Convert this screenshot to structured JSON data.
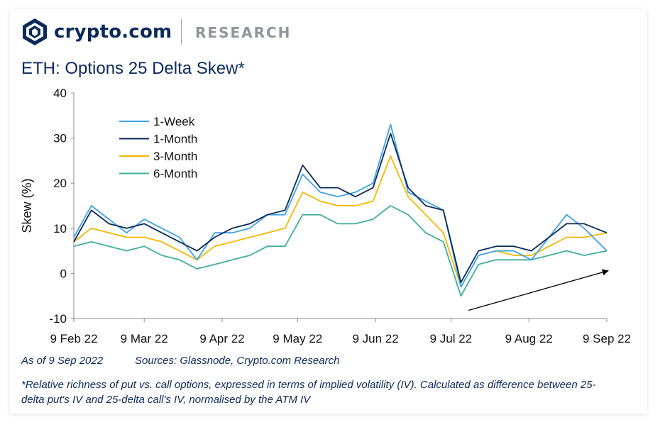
{
  "header": {
    "brand_name": "crypto.com",
    "brand_sub": "RESEARCH",
    "title": "ETH: Options 25 Delta Skew*"
  },
  "footer": {
    "as_of": "As of 9 Sep 2022",
    "sources": "Sources: Glassnode, Crypto.com Research",
    "footnote": "*Relative richness of put vs. call options, expressed in terms of implied volatility (IV). Calculated as difference between 25-delta put's IV and 25-delta call's IV, normalised by the ATM IV"
  },
  "colors": {
    "1-Week": "#3fa2e8",
    "1-Month": "#0b2a5b",
    "3-Month": "#f5b800",
    "6-Month": "#3fae9b",
    "brand": "#0b2a5b"
  },
  "chart_data": {
    "type": "line",
    "title": "ETH: Options 25 Delta Skew*",
    "ylabel": "Skew (%)",
    "xlabel": "",
    "ylim": [
      -10,
      40
    ],
    "yticks": [
      "-10",
      "0",
      "10",
      "20",
      "30",
      "40"
    ],
    "xticks": [
      "9 Feb 22",
      "9 Mar 22",
      "9 Apr 22",
      "9 May 22",
      "9 Jun 22",
      "9 Jul 22",
      "9 Aug 22",
      "9 Sep 22"
    ],
    "legend_position": "top-left",
    "grid": false,
    "annotation": "arrow indicating upward trend from mid-Jul 22 to 9 Sep 22",
    "x": [
      "2022-02-09",
      "2022-02-16",
      "2022-02-23",
      "2022-03-02",
      "2022-03-09",
      "2022-03-16",
      "2022-03-23",
      "2022-03-30",
      "2022-04-06",
      "2022-04-13",
      "2022-04-20",
      "2022-04-27",
      "2022-05-04",
      "2022-05-11",
      "2022-05-18",
      "2022-05-25",
      "2022-06-01",
      "2022-06-08",
      "2022-06-15",
      "2022-06-22",
      "2022-06-29",
      "2022-07-06",
      "2022-07-13",
      "2022-07-20",
      "2022-07-27",
      "2022-08-03",
      "2022-08-10",
      "2022-08-17",
      "2022-08-24",
      "2022-08-31",
      "2022-09-09"
    ],
    "series": [
      {
        "name": "1-Week",
        "values": [
          8,
          15,
          12,
          9,
          12,
          10,
          8,
          3,
          9,
          9,
          10,
          13,
          13,
          22,
          18,
          17,
          18,
          20,
          33,
          18,
          16,
          14,
          -3,
          4,
          5,
          5,
          3,
          8,
          13,
          10,
          5
        ]
      },
      {
        "name": "1-Month",
        "values": [
          7,
          14,
          11,
          10,
          11,
          9,
          7,
          5,
          8,
          10,
          11,
          13,
          14,
          24,
          19,
          19,
          17,
          19,
          31,
          19,
          15,
          14,
          -2,
          5,
          6,
          6,
          5,
          8,
          11,
          11,
          9
        ]
      },
      {
        "name": "3-Month",
        "values": [
          7,
          10,
          9,
          8,
          8,
          7,
          5,
          3,
          6,
          7,
          8,
          9,
          10,
          18,
          16,
          15,
          15,
          16,
          26,
          17,
          13,
          9,
          -3,
          4,
          5,
          4,
          4,
          6,
          8,
          8,
          9
        ]
      },
      {
        "name": "6-Month",
        "values": [
          6,
          7,
          6,
          5,
          6,
          4,
          3,
          1,
          2,
          3,
          4,
          6,
          6,
          13,
          13,
          11,
          11,
          12,
          15,
          13,
          9,
          7,
          -5,
          2,
          3,
          3,
          3,
          4,
          5,
          4,
          5
        ]
      }
    ]
  }
}
